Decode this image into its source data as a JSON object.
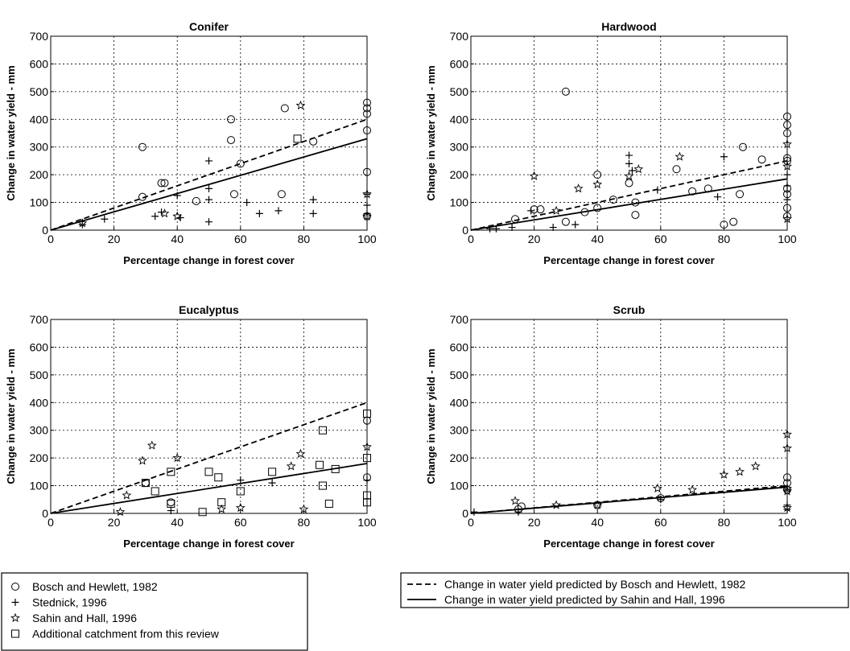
{
  "legend": {
    "markers": [
      {
        "symbol": "circle",
        "label": "Bosch and Hewlett, 1982"
      },
      {
        "symbol": "plus",
        "label": "Stednick, 1996"
      },
      {
        "symbol": "star",
        "label": "Sahin and Hall, 1996"
      },
      {
        "symbol": "square",
        "label": "Additional catchment from this review"
      }
    ],
    "lines": [
      {
        "style": "dashed",
        "label": "Change in water yield predicted by Bosch and Hewlett, 1982"
      },
      {
        "style": "solid",
        "label": "Change in water yield predicted by Sahin and Hall, 1996"
      }
    ]
  },
  "chart_data": [
    {
      "type": "scatter",
      "title": "Conifer",
      "xlabel": "Percentage change in forest cover",
      "ylabel": "Change in water yield - mm",
      "xlim": [
        0,
        100
      ],
      "ylim": [
        0,
        700
      ],
      "xticks": [
        0,
        20,
        40,
        60,
        80,
        100
      ],
      "yticks": [
        0,
        100,
        200,
        300,
        400,
        500,
        600,
        700
      ],
      "grid": true,
      "lines": [
        {
          "name": "Bosch and Hewlett, 1982",
          "style": "dashed",
          "x": [
            0,
            100
          ],
          "y": [
            0,
            400
          ]
        },
        {
          "name": "Sahin and Hall, 1996",
          "style": "solid",
          "x": [
            0,
            100
          ],
          "y": [
            0,
            330
          ]
        }
      ],
      "series": [
        {
          "name": "Bosch and Hewlett, 1982",
          "marker": "circle",
          "points": [
            [
              29,
              300
            ],
            [
              29,
              120
            ],
            [
              35,
              170
            ],
            [
              36,
              170
            ],
            [
              46,
              105
            ],
            [
              57,
              400
            ],
            [
              57,
              325
            ],
            [
              58,
              130
            ],
            [
              60,
              240
            ],
            [
              73,
              130
            ],
            [
              74,
              440
            ],
            [
              83,
              320
            ],
            [
              100,
              210
            ],
            [
              100,
              460
            ],
            [
              100,
              440
            ],
            [
              100,
              420
            ],
            [
              100,
              360
            ],
            [
              100,
              50
            ]
          ]
        },
        {
          "name": "Stednick, 1996",
          "marker": "plus",
          "points": [
            [
              10,
              20
            ],
            [
              17,
              40
            ],
            [
              33,
              50
            ],
            [
              35,
              65
            ],
            [
              40,
              125
            ],
            [
              41,
              45
            ],
            [
              50,
              250
            ],
            [
              50,
              150
            ],
            [
              50,
              110
            ],
            [
              50,
              30
            ],
            [
              62,
              100
            ],
            [
              66,
              60
            ],
            [
              72,
              70
            ],
            [
              83,
              110
            ],
            [
              83,
              60
            ],
            [
              100,
              90
            ],
            [
              100,
              130
            ],
            [
              100,
              60
            ]
          ]
        },
        {
          "name": "Sahin and Hall, 1996",
          "marker": "star",
          "points": [
            [
              10,
              25
            ],
            [
              36,
              60
            ],
            [
              40,
              50
            ],
            [
              79,
              450
            ],
            [
              100,
              130
            ],
            [
              100,
              50
            ]
          ]
        },
        {
          "name": "Additional catchment from this review",
          "marker": "square",
          "points": [
            [
              78,
              330
            ]
          ]
        }
      ]
    },
    {
      "type": "scatter",
      "title": "Hardwood",
      "xlabel": "Percentage change in forest cover",
      "ylabel": "Change in water yield - mm",
      "xlim": [
        0,
        100
      ],
      "ylim": [
        0,
        700
      ],
      "xticks": [
        0,
        20,
        40,
        60,
        80,
        100
      ],
      "yticks": [
        0,
        100,
        200,
        300,
        400,
        500,
        600,
        700
      ],
      "grid": true,
      "lines": [
        {
          "name": "Bosch and Hewlett, 1982",
          "style": "dashed",
          "x": [
            0,
            100
          ],
          "y": [
            0,
            250
          ]
        },
        {
          "name": "Sahin and Hall, 1996",
          "style": "solid",
          "x": [
            0,
            100
          ],
          "y": [
            0,
            185
          ]
        }
      ],
      "series": [
        {
          "name": "Bosch and Hewlett, 1982",
          "marker": "circle",
          "points": [
            [
              14,
              40
            ],
            [
              20,
              75
            ],
            [
              22,
              75
            ],
            [
              30,
              500
            ],
            [
              30,
              30
            ],
            [
              36,
              65
            ],
            [
              40,
              200
            ],
            [
              40,
              80
            ],
            [
              45,
              110
            ],
            [
              50,
              170
            ],
            [
              52,
              100
            ],
            [
              52,
              55
            ],
            [
              65,
              220
            ],
            [
              70,
              140
            ],
            [
              75,
              150
            ],
            [
              80,
              20
            ],
            [
              83,
              30
            ],
            [
              85,
              130
            ],
            [
              86,
              300
            ],
            [
              92,
              255
            ],
            [
              100,
              410
            ],
            [
              100,
              380
            ],
            [
              100,
              350
            ],
            [
              100,
              260
            ],
            [
              100,
              250
            ],
            [
              100,
              150
            ],
            [
              100,
              130
            ],
            [
              100,
              80
            ],
            [
              100,
              50
            ]
          ]
        },
        {
          "name": "Stednick, 1996",
          "marker": "plus",
          "points": [
            [
              6,
              5
            ],
            [
              8,
              5
            ],
            [
              13,
              10
            ],
            [
              19,
              70
            ],
            [
              26,
              10
            ],
            [
              33,
              20
            ],
            [
              50,
              270
            ],
            [
              50,
              240
            ],
            [
              51,
              215
            ],
            [
              59,
              145
            ],
            [
              78,
              120
            ],
            [
              80,
              265
            ],
            [
              100,
              200
            ],
            [
              100,
              160
            ],
            [
              100,
              110
            ]
          ]
        },
        {
          "name": "Sahin and Hall, 1996",
          "marker": "star",
          "points": [
            [
              20,
              195
            ],
            [
              27,
              70
            ],
            [
              34,
              150
            ],
            [
              40,
              165
            ],
            [
              50,
              195
            ],
            [
              53,
              220
            ],
            [
              66,
              265
            ],
            [
              100,
              310
            ],
            [
              100,
              230
            ],
            [
              100,
              40
            ]
          ]
        }
      ]
    },
    {
      "type": "scatter",
      "title": "Eucalyptus",
      "xlabel": "Percentage change in forest cover",
      "ylabel": "Change in water yield - mm",
      "xlim": [
        0,
        100
      ],
      "ylim": [
        0,
        700
      ],
      "xticks": [
        0,
        20,
        40,
        60,
        80,
        100
      ],
      "yticks": [
        0,
        100,
        200,
        300,
        400,
        500,
        600,
        700
      ],
      "grid": true,
      "lines": [
        {
          "name": "Bosch and Hewlett, 1982",
          "style": "dashed",
          "x": [
            0,
            100
          ],
          "y": [
            0,
            400
          ]
        },
        {
          "name": "Sahin and Hall, 1996",
          "style": "solid",
          "x": [
            0,
            100
          ],
          "y": [
            0,
            180
          ]
        }
      ],
      "series": [
        {
          "name": "Bosch and Hewlett, 1982",
          "marker": "circle",
          "points": [
            [
              30,
              110
            ],
            [
              38,
              40
            ],
            [
              100,
              335
            ],
            [
              100,
              130
            ]
          ]
        },
        {
          "name": "Stednick, 1996",
          "marker": "plus",
          "points": [
            [
              38,
              10
            ],
            [
              60,
              120
            ],
            [
              70,
              110
            ],
            [
              100,
              120
            ]
          ]
        },
        {
          "name": "Sahin and Hall, 1996",
          "marker": "star",
          "points": [
            [
              22,
              5
            ],
            [
              24,
              65
            ],
            [
              29,
              190
            ],
            [
              32,
              245
            ],
            [
              40,
              200
            ],
            [
              54,
              15
            ],
            [
              60,
              20
            ],
            [
              76,
              170
            ],
            [
              79,
              215
            ],
            [
              80,
              15
            ],
            [
              100,
              240
            ]
          ]
        },
        {
          "name": "Additional catchment from this review",
          "marker": "square",
          "points": [
            [
              30,
              110
            ],
            [
              33,
              80
            ],
            [
              38,
              150
            ],
            [
              38,
              35
            ],
            [
              48,
              5
            ],
            [
              50,
              150
            ],
            [
              53,
              130
            ],
            [
              54,
              40
            ],
            [
              60,
              80
            ],
            [
              70,
              150
            ],
            [
              85,
              175
            ],
            [
              86,
              300
            ],
            [
              86,
              100
            ],
            [
              88,
              35
            ],
            [
              90,
              160
            ],
            [
              100,
              360
            ],
            [
              100,
              200
            ],
            [
              100,
              65
            ],
            [
              100,
              40
            ]
          ]
        }
      ]
    },
    {
      "type": "scatter",
      "title": "Scrub",
      "xlabel": "Percentage change in forest cover",
      "ylabel": "Change in water yield - mm",
      "xlim": [
        0,
        100
      ],
      "ylim": [
        0,
        700
      ],
      "xticks": [
        0,
        20,
        40,
        60,
        80,
        100
      ],
      "yticks": [
        0,
        100,
        200,
        300,
        400,
        500,
        600,
        700
      ],
      "grid": true,
      "lines": [
        {
          "name": "Bosch and Hewlett, 1982",
          "style": "dashed",
          "x": [
            0,
            100
          ],
          "y": [
            0,
            100
          ]
        },
        {
          "name": "Sahin and Hall, 1996",
          "style": "solid",
          "x": [
            0,
            100
          ],
          "y": [
            0,
            95
          ]
        }
      ],
      "series": [
        {
          "name": "Bosch and Hewlett, 1982",
          "marker": "circle",
          "points": [
            [
              15,
              15
            ],
            [
              16,
              25
            ],
            [
              40,
              30
            ],
            [
              60,
              55
            ],
            [
              100,
              130
            ],
            [
              100,
              110
            ],
            [
              100,
              85
            ]
          ]
        },
        {
          "name": "Stednick, 1996",
          "marker": "plus",
          "points": [
            [
              1,
              5
            ],
            [
              15,
              5
            ],
            [
              60,
              50
            ],
            [
              100,
              30
            ],
            [
              100,
              15
            ]
          ]
        },
        {
          "name": "Sahin and Hall, 1996",
          "marker": "star",
          "points": [
            [
              14,
              45
            ],
            [
              27,
              30
            ],
            [
              40,
              30
            ],
            [
              59,
              90
            ],
            [
              70,
              85
            ],
            [
              80,
              140
            ],
            [
              85,
              150
            ],
            [
              90,
              170
            ],
            [
              100,
              285
            ],
            [
              100,
              235
            ],
            [
              100,
              90
            ],
            [
              100,
              80
            ],
            [
              100,
              20
            ]
          ]
        }
      ]
    }
  ]
}
